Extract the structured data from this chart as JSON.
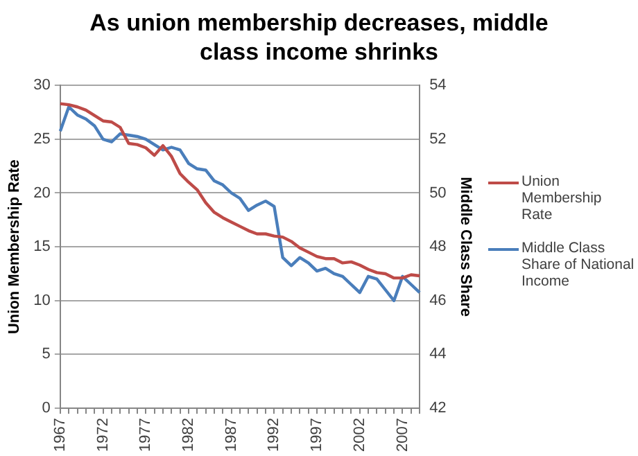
{
  "chart_data": {
    "type": "line",
    "title": "As union membership decreases, middle class income shrinks",
    "ylabel": "Union Membership Rate",
    "y2label": "Middle Class Share",
    "categories": [
      "1967",
      null,
      null,
      null,
      null,
      "1972",
      null,
      null,
      null,
      null,
      "1977",
      null,
      null,
      null,
      null,
      "1982",
      null,
      null,
      null,
      null,
      "1987",
      null,
      null,
      null,
      null,
      "1992",
      null,
      null,
      null,
      null,
      "1997",
      null,
      null,
      null,
      null,
      "2002",
      null,
      null,
      null,
      null,
      "2007",
      null,
      null
    ],
    "series": [
      {
        "name": "Union Membership Rate",
        "color": "#be4b48",
        "values": [
          28.3,
          28.2,
          28.0,
          27.7,
          27.2,
          26.7,
          26.6,
          26.1,
          24.6,
          24.5,
          24.2,
          23.5,
          24.4,
          23.4,
          21.8,
          21.0,
          20.3,
          19.1,
          18.2,
          17.7,
          17.3,
          16.9,
          16.5,
          16.2,
          16.2,
          16.0,
          15.9,
          15.5,
          14.9,
          14.5,
          14.1,
          13.9,
          13.9,
          13.5,
          13.6,
          13.3,
          12.9,
          12.6,
          12.5,
          12.1,
          12.1,
          12.4,
          12.3
        ]
      },
      {
        "name": "Middle Class Share of National Income",
        "color": "#4a7ebb",
        "axis": "y2",
        "values": [
          52.3,
          53.2,
          52.9,
          52.75,
          52.5,
          52.0,
          51.9,
          52.2,
          52.15,
          52.1,
          52.0,
          51.8,
          51.6,
          51.7,
          51.6,
          51.1,
          50.9,
          50.85,
          50.45,
          50.3,
          50.0,
          49.8,
          49.35,
          49.55,
          49.7,
          49.5,
          47.6,
          47.3,
          47.6,
          47.4,
          47.1,
          47.2,
          47.0,
          46.9,
          46.6,
          46.3,
          46.9,
          46.8,
          46.4,
          46.0,
          46.9,
          46.6,
          46.3
        ]
      }
    ],
    "ylim": [
      0,
      30
    ],
    "yticks": [
      0,
      5,
      10,
      15,
      20,
      25,
      30
    ],
    "y2lim": [
      42,
      54
    ],
    "y2ticks": [
      42,
      44,
      46,
      48,
      50,
      52,
      54
    ],
    "grid": "y",
    "legend": "right",
    "marker": "none",
    "line_style": "solid"
  }
}
